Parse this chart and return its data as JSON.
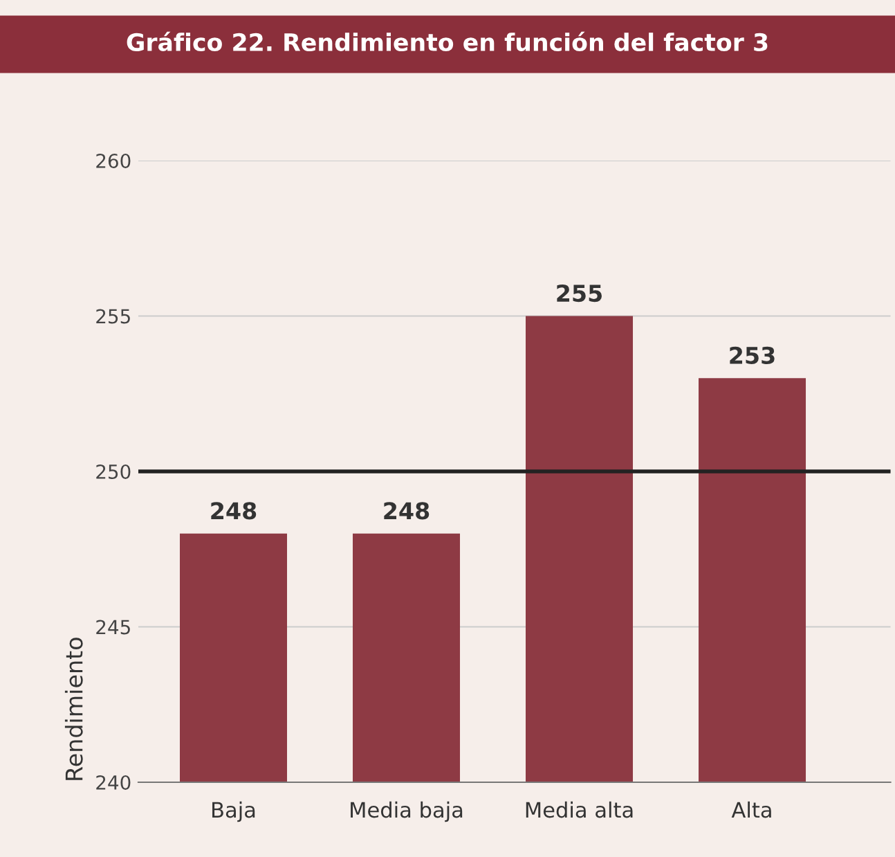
{
  "chart_data": {
    "type": "bar",
    "title": "Gráfico 22. Rendimiento en función del factor 3",
    "ylabel": "Rendimiento",
    "categories": [
      "Baja",
      "Media baja",
      "Media alta",
      "Alta"
    ],
    "values": [
      248,
      248,
      255,
      253
    ],
    "color": "#8e3a44",
    "data_labels": true,
    "ylim": [
      240,
      260
    ],
    "yticks": [
      240,
      245,
      250,
      255,
      260
    ],
    "grid": "y",
    "ref_lines": [
      {
        "axis": "y",
        "value": 250,
        "color": "#222222"
      }
    ]
  }
}
